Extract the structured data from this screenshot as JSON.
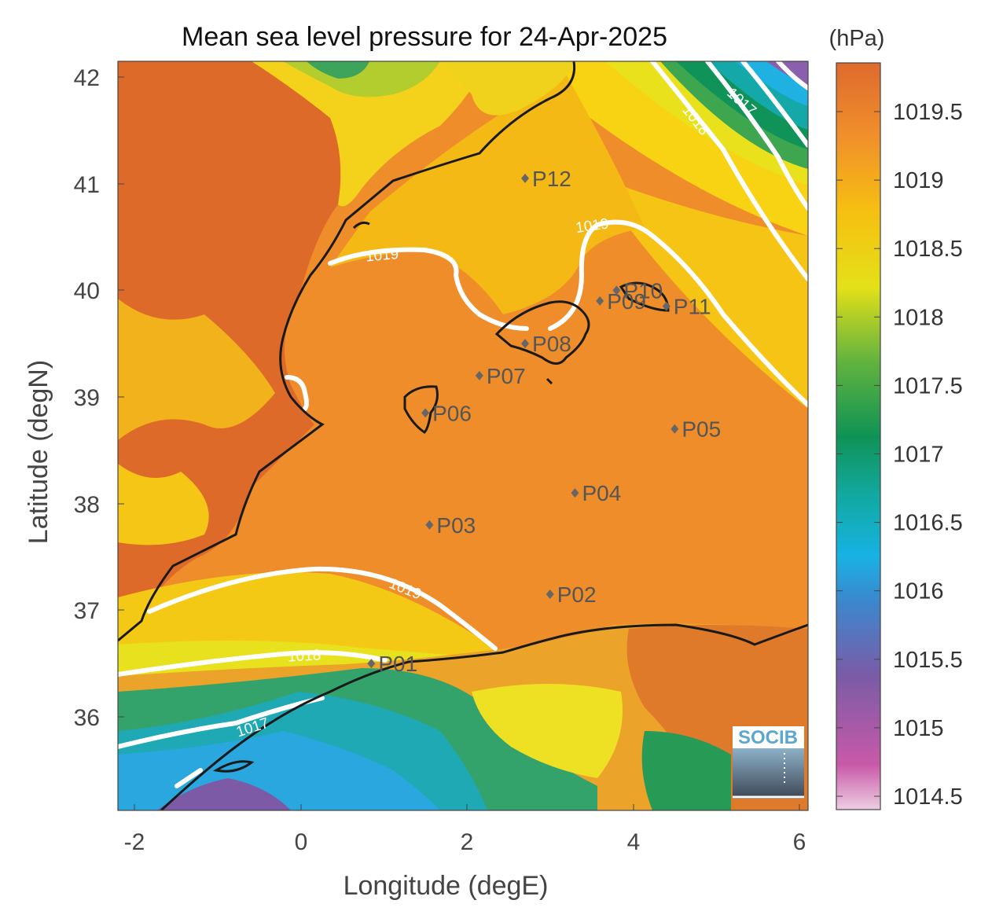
{
  "title": "Mean sea level pressure for 24-Apr-2025",
  "units_label": "(hPa)",
  "xlabel": "Longitude (degE)",
  "ylabel": "Latitude (degN)",
  "x_ticks": [
    "-2",
    "0",
    "2",
    "4",
    "6"
  ],
  "y_ticks": [
    "36",
    "37",
    "38",
    "39",
    "40",
    "41",
    "42"
  ],
  "colorbar": {
    "ticks": [
      "1014.5",
      "1015",
      "1015.5",
      "1016",
      "1016.5",
      "1017",
      "1017.5",
      "1018",
      "1018.5",
      "1019",
      "1019.5"
    ],
    "colors": [
      "#e8bfd9",
      "#c95ea9",
      "#7a58a5",
      "#3a9fd9",
      "#20b5d8",
      "#14a8a0",
      "#0e9358",
      "#5bb041",
      "#dcdd1e",
      "#f5bd12",
      "#e3692b"
    ]
  },
  "contour_labels": [
    "1019",
    "1019",
    "1019",
    "1018",
    "1018",
    "1017",
    "1017"
  ],
  "stations": [
    {
      "id": "P01",
      "lon": 0.85,
      "lat": 36.5
    },
    {
      "id": "P02",
      "lon": 3.0,
      "lat": 37.15
    },
    {
      "id": "P03",
      "lon": 1.55,
      "lat": 37.8
    },
    {
      "id": "P04",
      "lon": 3.3,
      "lat": 38.1
    },
    {
      "id": "P05",
      "lon": 4.5,
      "lat": 38.7
    },
    {
      "id": "P06",
      "lon": 1.5,
      "lat": 38.85
    },
    {
      "id": "P07",
      "lon": 2.15,
      "lat": 39.2
    },
    {
      "id": "P08",
      "lon": 2.7,
      "lat": 39.5
    },
    {
      "id": "P09",
      "lon": 3.6,
      "lat": 39.9
    },
    {
      "id": "P10",
      "lon": 3.8,
      "lat": 40.0
    },
    {
      "id": "P11",
      "lon": 4.4,
      "lat": 39.85
    },
    {
      "id": "P12",
      "lon": 2.7,
      "lat": 41.05
    }
  ],
  "logo_text": "SOCIB"
}
